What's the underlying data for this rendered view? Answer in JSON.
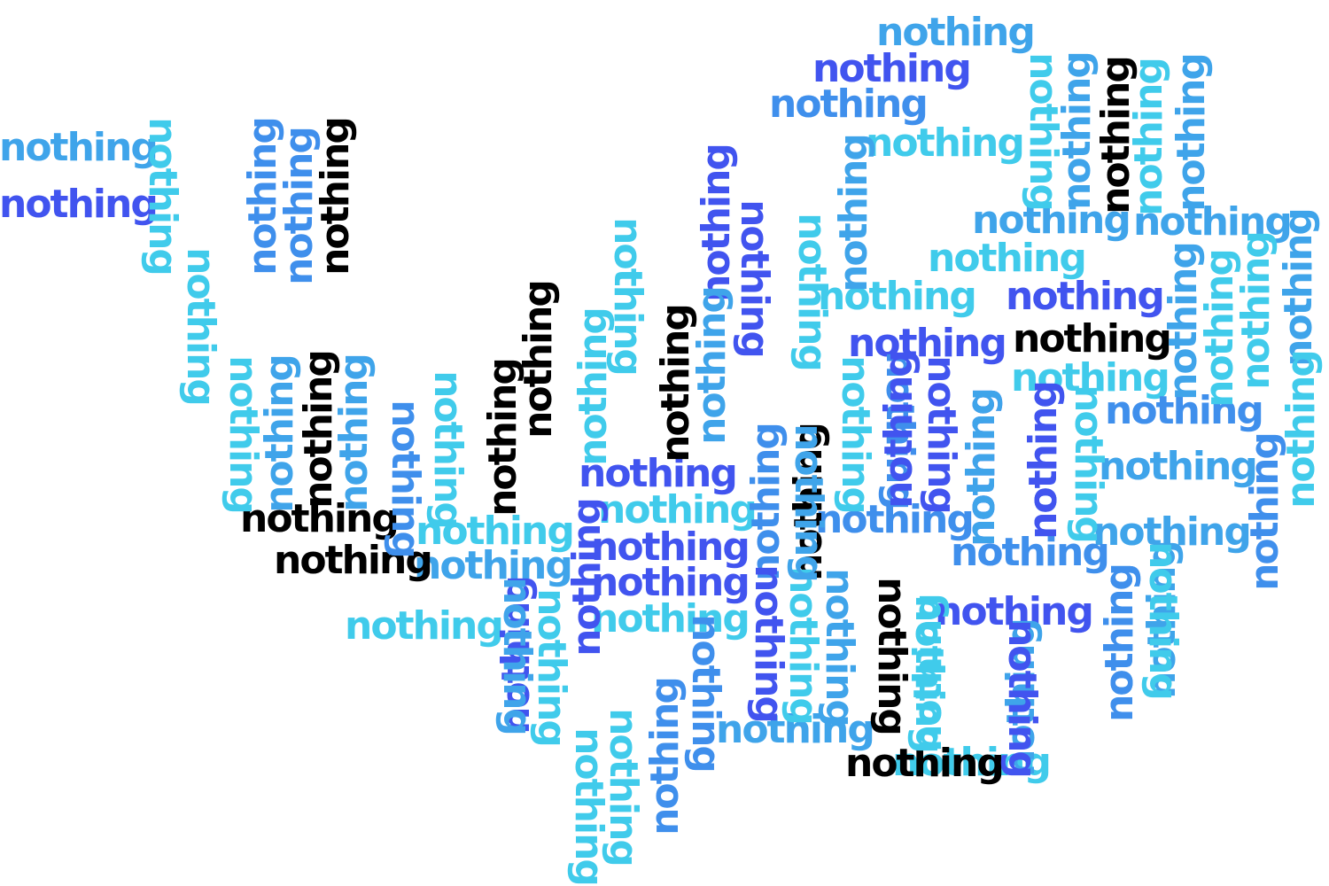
{
  "word_cloud": {
    "words": [
      {
        "text": "nothing",
        "color": "#3fa4ea",
        "rotation": 0
      },
      {
        "text": "nothing",
        "color": "#4154ef",
        "rotation": 0
      },
      {
        "text": "nothing",
        "color": "#3f8fec",
        "rotation": 0
      },
      {
        "text": "nothing",
        "color": "#40cbeb",
        "rotation": 0
      },
      {
        "text": "nothing",
        "color": "#3fa4ea",
        "rotation": 0
      },
      {
        "text": "nothing",
        "color": "#4154ef",
        "rotation": 0
      },
      {
        "text": "nothing",
        "color": "#40cbeb",
        "rotation": 0
      },
      {
        "text": "nothing",
        "color": "#3fa4ea",
        "rotation": 0
      },
      {
        "text": "nothing",
        "color": "#40cbeb",
        "rotation": 0
      },
      {
        "text": "nothing",
        "color": "#4154ef",
        "rotation": 0
      },
      {
        "text": "nothing",
        "color": "#40cbeb",
        "rotation": 0
      },
      {
        "text": "nothing",
        "color": "#4154ef",
        "rotation": 0
      },
      {
        "text": "nothing",
        "color": "#000000",
        "rotation": 0
      },
      {
        "text": "nothing",
        "color": "#3fa4ea",
        "rotation": 0
      },
      {
        "text": "nothing",
        "color": "#3f8fec",
        "rotation": 0
      },
      {
        "text": "nothing",
        "color": "#4154ef",
        "rotation": 0
      },
      {
        "text": "nothing",
        "color": "#3fa4ea",
        "rotation": 0
      },
      {
        "text": "nothing",
        "color": "#40cbeb",
        "rotation": 0
      },
      {
        "text": "nothing",
        "color": "#40cbeb",
        "rotation": 0
      },
      {
        "text": "nothing",
        "color": "#3fa4ea",
        "rotation": 0
      },
      {
        "text": "nothing",
        "color": "#000000",
        "rotation": 0
      },
      {
        "text": "nothing",
        "color": "#000000",
        "rotation": 0
      },
      {
        "text": "nothing",
        "color": "#3fa4ea",
        "rotation": 0
      },
      {
        "text": "nothing",
        "color": "#3f8fec",
        "rotation": 0
      },
      {
        "text": "nothing",
        "color": "#4154ef",
        "rotation": 0
      },
      {
        "text": "nothing",
        "color": "#4154ef",
        "rotation": 0
      },
      {
        "text": "nothing",
        "color": "#40cbeb",
        "rotation": 0
      },
      {
        "text": "nothing",
        "color": "#40cbeb",
        "rotation": 0
      },
      {
        "text": "nothing",
        "color": "#3f8fec",
        "rotation": 0
      },
      {
        "text": "nothing",
        "color": "#4154ef",
        "rotation": 0
      },
      {
        "text": "nothing",
        "color": "#3fa4ea",
        "rotation": 0
      },
      {
        "text": "nothing",
        "color": "#40cbeb",
        "rotation": 0
      },
      {
        "text": "nothing",
        "color": "#000000",
        "rotation": 0
      },
      {
        "text": "nothing",
        "color": "#40cbeb",
        "rotation": 90
      },
      {
        "text": "nothing",
        "color": "#3f8fec",
        "rotation": -90
      },
      {
        "text": "nothing",
        "color": "#3f8fec",
        "rotation": -90
      },
      {
        "text": "nothing",
        "color": "#000000",
        "rotation": -90
      },
      {
        "text": "nothing",
        "color": "#40cbeb",
        "rotation": 90
      },
      {
        "text": "nothing",
        "color": "#3fa4ea",
        "rotation": -90
      },
      {
        "text": "nothing",
        "color": "#40cbeb",
        "rotation": 90
      },
      {
        "text": "nothing",
        "color": "#3fa4ea",
        "rotation": -90
      },
      {
        "text": "nothing",
        "color": "#000000",
        "rotation": -90
      },
      {
        "text": "nothing",
        "color": "#40cbeb",
        "rotation": -90
      },
      {
        "text": "nothing",
        "color": "#3fa4ea",
        "rotation": -90
      },
      {
        "text": "nothing",
        "color": "#4154ef",
        "rotation": -90
      },
      {
        "text": "nothing",
        "color": "#4154ef",
        "rotation": 90
      },
      {
        "text": "nothing",
        "color": "#40cbeb",
        "rotation": 90
      },
      {
        "text": "nothing",
        "color": "#40cbeb",
        "rotation": 90
      },
      {
        "text": "nothing",
        "color": "#000000",
        "rotation": -90
      },
      {
        "text": "nothing",
        "color": "#3fa4ea",
        "rotation": -90
      },
      {
        "text": "nothing",
        "color": "#3fa4ea",
        "rotation": -90
      },
      {
        "text": "nothing",
        "color": "#40cbeb",
        "rotation": -90
      },
      {
        "text": "nothing",
        "color": "#40cbeb",
        "rotation": -90
      },
      {
        "text": "nothing",
        "color": "#3fa4ea",
        "rotation": -90
      },
      {
        "text": "nothing",
        "color": "#40cbeb",
        "rotation": -90
      },
      {
        "text": "nothing",
        "color": "#3f8fec",
        "rotation": -90
      },
      {
        "text": "nothing",
        "color": "#40cbeb",
        "rotation": 90
      },
      {
        "text": "nothing",
        "color": "#3fa4ea",
        "rotation": -90
      },
      {
        "text": "nothing",
        "color": "#000000",
        "rotation": -90
      },
      {
        "text": "nothing",
        "color": "#3fa4ea",
        "rotation": -90
      },
      {
        "text": "nothing",
        "color": "#3f8fec",
        "rotation": 90
      },
      {
        "text": "nothing",
        "color": "#40cbeb",
        "rotation": 90
      },
      {
        "text": "nothing",
        "color": "#000000",
        "rotation": -90
      },
      {
        "text": "nothing",
        "color": "#000000",
        "rotation": -90
      },
      {
        "text": "nothing",
        "color": "#3f8fec",
        "rotation": -90
      },
      {
        "text": "nothing",
        "color": "#000000",
        "rotation": -90
      },
      {
        "text": "nothing",
        "color": "#40cbeb",
        "rotation": 90
      },
      {
        "text": "nothing",
        "color": "#000000",
        "rotation": 90
      },
      {
        "text": "nothing",
        "color": "#40cbeb",
        "rotation": 90
      },
      {
        "text": "nothing",
        "color": "#3f8fec",
        "rotation": 90
      },
      {
        "text": "nothing",
        "color": "#4154ef",
        "rotation": 90
      },
      {
        "text": "nothing",
        "color": "#4154ef",
        "rotation": -90
      },
      {
        "text": "nothing",
        "color": "#3f8fec",
        "rotation": -90
      },
      {
        "text": "nothing",
        "color": "#3fa4ea",
        "rotation": -90
      },
      {
        "text": "nothing",
        "color": "#3fa4ea",
        "rotation": -90
      },
      {
        "text": "nothing",
        "color": "#40cbeb",
        "rotation": -90
      },
      {
        "text": "nothing",
        "color": "#3fa4ea",
        "rotation": -90
      },
      {
        "text": "nothing",
        "color": "#4154ef",
        "rotation": -90
      },
      {
        "text": "nothing",
        "color": "#40cbeb",
        "rotation": 90
      },
      {
        "text": "nothing",
        "color": "#4154ef",
        "rotation": -90
      },
      {
        "text": "nothing",
        "color": "#40cbeb",
        "rotation": -90
      },
      {
        "text": "nothing",
        "color": "#3f8fec",
        "rotation": 90
      },
      {
        "text": "nothing",
        "color": "#4154ef",
        "rotation": 90
      },
      {
        "text": "nothing",
        "color": "#40cbeb",
        "rotation": 90
      },
      {
        "text": "nothing",
        "color": "#3fa4ea",
        "rotation": 90
      },
      {
        "text": "nothing",
        "color": "#3f8fec",
        "rotation": -90
      },
      {
        "text": "nothing",
        "color": "#40cbeb",
        "rotation": 90
      },
      {
        "text": "nothing",
        "color": "#40cbeb",
        "rotation": 90
      },
      {
        "text": "nothing",
        "color": "#3fa4ea",
        "rotation": 90
      },
      {
        "text": "nothing",
        "color": "#4154ef",
        "rotation": -90
      },
      {
        "text": "nothing",
        "color": "#3fa4ea",
        "rotation": -90
      },
      {
        "text": "nothing",
        "color": "#4154ef",
        "rotation": -90
      },
      {
        "text": "nothing",
        "color": "#3f8fec",
        "rotation": -90
      },
      {
        "text": "nothing",
        "color": "#40cbeb",
        "rotation": 90
      },
      {
        "text": "nothing",
        "color": "#40cbeb",
        "rotation": 90
      },
      {
        "text": "nothing",
        "color": "#4154ef",
        "rotation": 90
      },
      {
        "text": "nothing",
        "color": "#3fa4ea",
        "rotation": 90
      }
    ]
  }
}
